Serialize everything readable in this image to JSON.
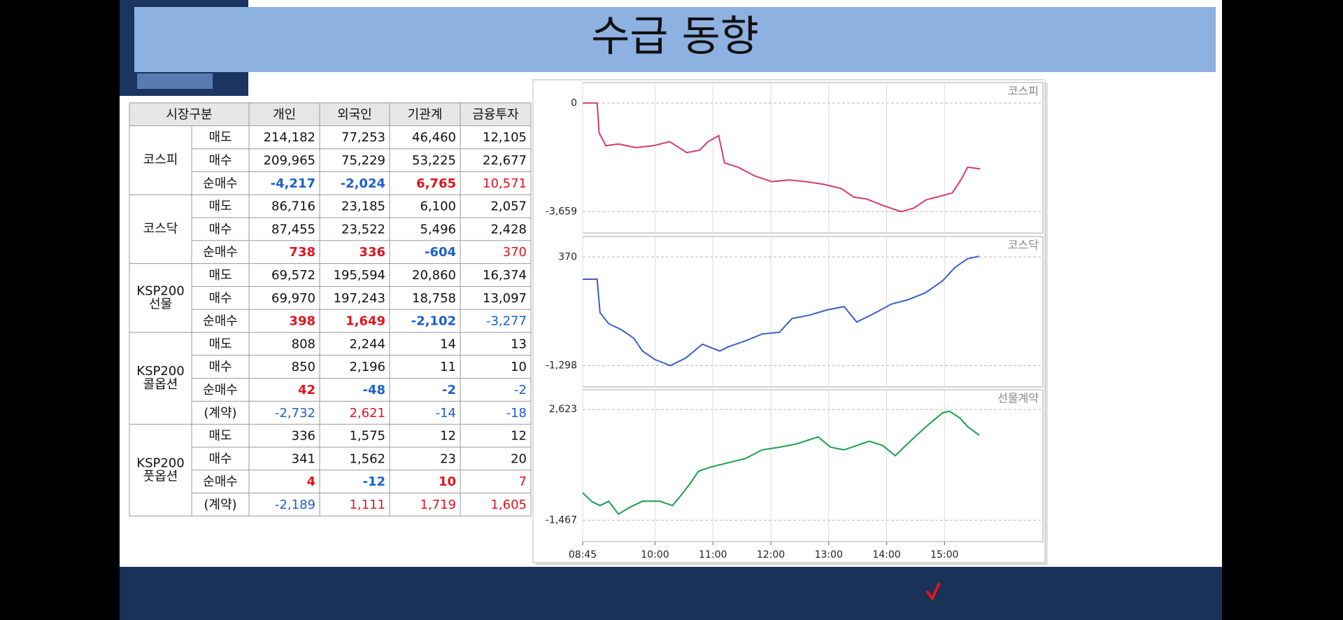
{
  "title": "수급 동향",
  "table": {
    "header": [
      "시장구분",
      "개인",
      "외국인",
      "기관계",
      "금융투자"
    ],
    "groups": [
      {
        "name": [
          "코스피"
        ],
        "rows": [
          {
            "label": "매도",
            "cells": [
              "214,182",
              "77,253",
              "46,460",
              "12,105"
            ]
          },
          {
            "label": "매수",
            "cells": [
              "209,965",
              "75,229",
              "53,225",
              "22,677"
            ]
          },
          {
            "label": "순매수",
            "cells": [
              "-4,217",
              "-2,024",
              "6,765",
              "10,571"
            ],
            "bold": true,
            "signed": true
          }
        ]
      },
      {
        "name": [
          "코스닥"
        ],
        "rows": [
          {
            "label": "매도",
            "cells": [
              "86,716",
              "23,185",
              "6,100",
              "2,057"
            ]
          },
          {
            "label": "매수",
            "cells": [
              "87,455",
              "23,522",
              "5,496",
              "2,428"
            ]
          },
          {
            "label": "순매수",
            "cells": [
              "738",
              "336",
              "-604",
              "370"
            ],
            "bold": true,
            "signed": true
          }
        ]
      },
      {
        "name": [
          "KSP200",
          "선물"
        ],
        "rows": [
          {
            "label": "매도",
            "cells": [
              "69,572",
              "195,594",
              "20,860",
              "16,374"
            ]
          },
          {
            "label": "매수",
            "cells": [
              "69,970",
              "197,243",
              "18,758",
              "13,097"
            ]
          },
          {
            "label": "순매수",
            "cells": [
              "398",
              "1,649",
              "-2,102",
              "-3,277"
            ],
            "bold": true,
            "signed": true
          }
        ]
      },
      {
        "name": [
          "KSP200",
          "콜옵션"
        ],
        "rows": [
          {
            "label": "매도",
            "cells": [
              "808",
              "2,244",
              "14",
              "13"
            ]
          },
          {
            "label": "매수",
            "cells": [
              "850",
              "2,196",
              "11",
              "10"
            ]
          },
          {
            "label": "순매수",
            "cells": [
              "42",
              "-48",
              "-2",
              "-2"
            ],
            "bold": true,
            "signed": true
          },
          {
            "label": "(계약)",
            "cells": [
              "-2,732",
              "2,621",
              "-14",
              "-18"
            ],
            "signed": true
          }
        ]
      },
      {
        "name": [
          "KSP200",
          "풋옵션"
        ],
        "rows": [
          {
            "label": "매도",
            "cells": [
              "336",
              "1,575",
              "12",
              "12"
            ]
          },
          {
            "label": "매수",
            "cells": [
              "341",
              "1,562",
              "23",
              "20"
            ]
          },
          {
            "label": "순매수",
            "cells": [
              "4",
              "-12",
              "10",
              "7"
            ],
            "bold": true,
            "signed": true
          },
          {
            "label": "(계약)",
            "cells": [
              "-2,189",
              "1,111",
              "1,719",
              "1,605"
            ],
            "signed": true
          }
        ]
      }
    ]
  },
  "chart_data": [
    {
      "type": "line",
      "title": "코스피",
      "color": "#d63a6e",
      "x": [
        "08:45",
        "09:00",
        "09:02",
        "09:09",
        "09:22",
        "09:40",
        "09:58",
        "10:15",
        "10:33",
        "10:46",
        "10:55",
        "11:06",
        "11:12",
        "11:26",
        "11:43",
        "12:01",
        "12:19",
        "12:37",
        "12:55",
        "13:13",
        "13:26",
        "13:39",
        "13:57",
        "14:15",
        "14:28",
        "14:41",
        "14:59",
        "15:08",
        "15:17",
        "15:24",
        "15:37"
      ],
      "values": [
        0,
        0,
        -1000,
        -1440,
        -1380,
        -1500,
        -1440,
        -1300,
        -1670,
        -1590,
        -1300,
        -1100,
        -2020,
        -2160,
        -2450,
        -2650,
        -2590,
        -2650,
        -2740,
        -2880,
        -3170,
        -3230,
        -3460,
        -3660,
        -3540,
        -3260,
        -3110,
        -3030,
        -2590,
        -2160,
        -2220
      ],
      "xlim": [
        "08:45",
        "16:42"
      ],
      "xticks": [
        "08:45",
        "10:00",
        "11:00",
        "12:00",
        "13:00",
        "14:00",
        "15:00"
      ],
      "ylim": [
        -4380,
        690
      ],
      "yticks": [
        0,
        {
          "value": -3659,
          "label": "-3,659"
        }
      ],
      "grid": true
    },
    {
      "type": "line",
      "title": "코스닥",
      "color": "#3a5fc8",
      "x": [
        "08:45",
        "09:00",
        "09:03",
        "09:12",
        "09:25",
        "09:38",
        "09:47",
        "10:00",
        "10:16",
        "10:32",
        "10:49",
        "11:07",
        "11:16",
        "11:34",
        "11:51",
        "12:09",
        "12:22",
        "12:40",
        "12:58",
        "13:16",
        "13:29",
        "13:47",
        "14:05",
        "14:22",
        "14:40",
        "14:58",
        "15:11",
        "15:24",
        "15:36"
      ],
      "values": [
        29,
        29,
        -484,
        -654,
        -746,
        -877,
        -1074,
        -1206,
        -1298,
        -1179,
        -969,
        -1074,
        -1009,
        -917,
        -812,
        -785,
        -575,
        -522,
        -444,
        -391,
        -628,
        -497,
        -352,
        -287,
        -181,
        3,
        213,
        344,
        383
      ],
      "xlim": [
        "08:45",
        "16:42"
      ],
      "xticks": [
        "08:45",
        "10:00",
        "11:00",
        "12:00",
        "13:00",
        "14:00",
        "15:00"
      ],
      "ylim": [
        -1626,
        685
      ],
      "yticks": [
        370,
        {
          "value": -1298,
          "label": "-1,298"
        }
      ],
      "grid": true
    },
    {
      "type": "line",
      "title": "선물계약",
      "color": "#1aa04a",
      "x": [
        "08:45",
        "08:54",
        "09:03",
        "09:12",
        "09:22",
        "09:34",
        "09:47",
        "10:05",
        "10:18",
        "10:27",
        "10:36",
        "10:45",
        "10:58",
        "11:16",
        "11:34",
        "11:51",
        "12:09",
        "12:27",
        "12:49",
        "13:02",
        "13:16",
        "13:29",
        "13:42",
        "13:56",
        "14:09",
        "14:18",
        "14:31",
        "14:44",
        "14:58",
        "15:05",
        "15:16",
        "15:24",
        "15:36"
      ],
      "values": [
        -452,
        -769,
        -927,
        -769,
        -1244,
        -991,
        -769,
        -769,
        -927,
        -547,
        -135,
        341,
        499,
        658,
        816,
        1133,
        1228,
        1355,
        1609,
        1228,
        1133,
        1292,
        1450,
        1292,
        912,
        1228,
        1672,
        2084,
        2496,
        2560,
        2306,
        1989,
        1672
      ],
      "xlim": [
        "08:45",
        "16:42"
      ],
      "xticks": [
        "08:45",
        "10:00",
        "11:00",
        "12:00",
        "13:00",
        "14:00",
        "15:00"
      ],
      "ylim": [
        -2260,
        3352
      ],
      "yticks": [
        {
          "value": 2623,
          "label": "2,623"
        },
        {
          "value": -1467,
          "label": "-1,467"
        }
      ],
      "grid": true
    }
  ]
}
